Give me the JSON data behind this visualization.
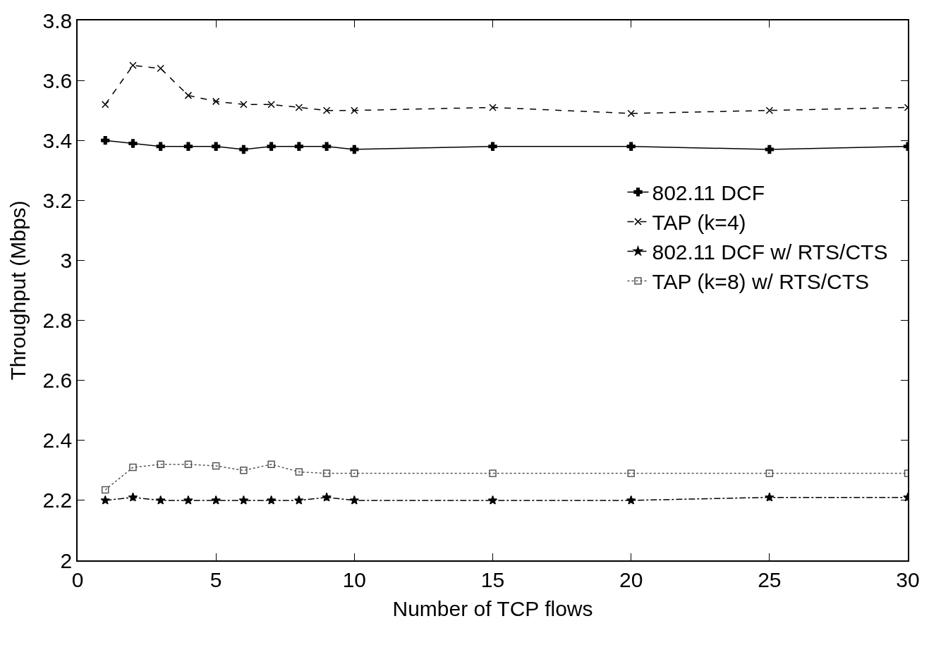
{
  "chart_data": {
    "type": "line",
    "xlabel": "Number of TCP flows",
    "ylabel": "Throughput (Mbps)",
    "x": [
      1,
      2,
      3,
      4,
      5,
      6,
      7,
      8,
      9,
      10,
      15,
      20,
      25,
      30
    ],
    "xlim": [
      0,
      30
    ],
    "xticks": [
      0,
      5,
      10,
      15,
      20,
      25,
      30
    ],
    "ylim": [
      2,
      3.8
    ],
    "yticks": [
      2,
      2.2,
      2.4,
      2.6,
      2.8,
      3,
      3.2,
      3.4,
      3.6,
      3.8
    ],
    "legend": "right",
    "series": [
      {
        "name": "802.11 DCF",
        "color": "#000000",
        "marker": "cross",
        "line_style": "solid",
        "values": [
          3.4,
          3.39,
          3.38,
          3.38,
          3.38,
          3.37,
          3.38,
          3.38,
          3.38,
          3.37,
          3.38,
          3.38,
          3.37,
          3.38
        ]
      },
      {
        "name": "TAP (k=4)",
        "color": "#000000",
        "marker": "x",
        "line_style": "dashed",
        "values": [
          3.52,
          3.65,
          3.64,
          3.55,
          3.53,
          3.52,
          3.52,
          3.51,
          3.5,
          3.5,
          3.51,
          3.49,
          3.5,
          3.51
        ]
      },
      {
        "name": "802.11 DCF w/ RTS/CTS",
        "color": "#000000",
        "marker": "star",
        "line_style": "dashdot",
        "values": [
          2.2,
          2.21,
          2.2,
          2.2,
          2.2,
          2.2,
          2.2,
          2.2,
          2.21,
          2.2,
          2.2,
          2.2,
          2.21,
          2.21
        ]
      },
      {
        "name": "TAP (k=8) w/ RTS/CTS",
        "color": "#555555",
        "marker": "square",
        "line_style": "dotted",
        "values": [
          2.235,
          2.31,
          2.32,
          2.32,
          2.315,
          2.3,
          2.32,
          2.295,
          2.29,
          2.29,
          2.29,
          2.29,
          2.29,
          2.29
        ]
      }
    ]
  }
}
